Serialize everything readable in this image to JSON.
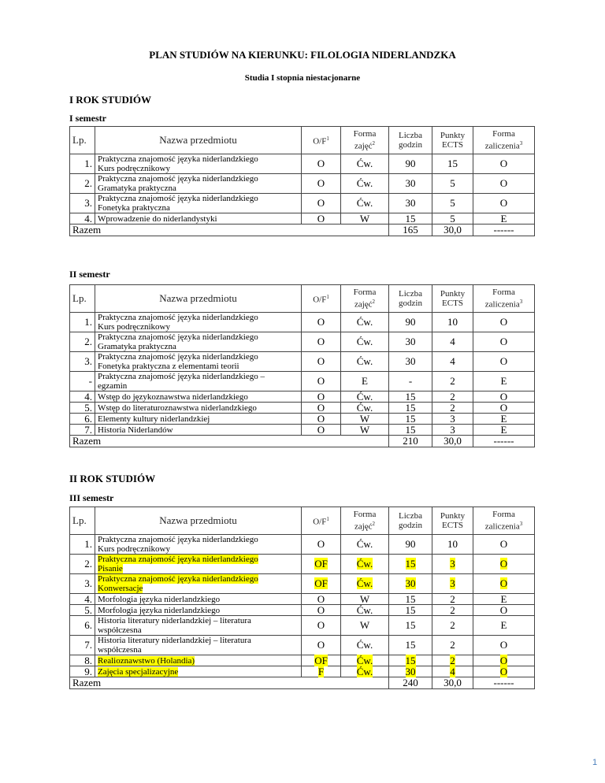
{
  "title": "PLAN STUDIÓW NA KIERUNKU: FILOLOGIA NIDERLANDZKA",
  "subtitle": "Studia I stopnia niestacjonarne",
  "headers": {
    "lp": "Lp.",
    "name": "Nazwa przedmiotu",
    "of": "O/F",
    "of_sup": "1",
    "forma": "Forma zajęć",
    "forma_sup": "2",
    "liczba": "Liczba godzin",
    "punkty": "Punkty ECTS",
    "zal": "Forma zaliczenia",
    "zal_sup": "3"
  },
  "highlight_color": "#ffff00",
  "years": [
    {
      "label": "I ROK STUDIÓW"
    },
    {
      "label": "II ROK STUDIÓW"
    }
  ],
  "semesters": [
    {
      "label": "I semestr",
      "rows": [
        {
          "lp": "1.",
          "name": "Praktyczna znajomość języka niderlandzkiego\nKurs podręcznikowy",
          "of": "O",
          "forma": "Ćw.",
          "godz": "90",
          "ects": "15",
          "zal": "O"
        },
        {
          "lp": "2.",
          "name": "Praktyczna znajomość języka niderlandzkiego\nGramatyka praktyczna",
          "of": "O",
          "forma": "Ćw.",
          "godz": "30",
          "ects": "5",
          "zal": "O"
        },
        {
          "lp": "3.",
          "name": "Praktyczna znajomość języka niderlandzkiego\nFonetyka praktyczna",
          "of": "O",
          "forma": "Ćw.",
          "godz": "30",
          "ects": "5",
          "zal": "O"
        },
        {
          "lp": "4.",
          "name": "Wprowadzenie do niderlandystyki",
          "of": "O",
          "forma": "W",
          "godz": "15",
          "ects": "5",
          "zal": "E"
        }
      ],
      "total": {
        "label": "Razem",
        "godz": "165",
        "ects": "30,0",
        "zal": "------"
      }
    },
    {
      "label": "II semestr",
      "rows": [
        {
          "lp": "1.",
          "name": "Praktyczna znajomość języka niderlandzkiego\nKurs podręcznikowy",
          "of": "O",
          "forma": "Ćw.",
          "godz": "90",
          "ects": "10",
          "zal": "O"
        },
        {
          "lp": "2.",
          "name": "Praktyczna znajomość języka niderlandzkiego\nGramatyka praktyczna",
          "of": "O",
          "forma": "Ćw.",
          "godz": "30",
          "ects": "4",
          "zal": "O"
        },
        {
          "lp": "3.",
          "name": "Praktyczna znajomość języka niderlandzkiego\nFonetyka praktyczna z elementami teorii",
          "of": "O",
          "forma": "Ćw.",
          "godz": "30",
          "ects": "4",
          "zal": "O"
        },
        {
          "lp": "-",
          "name": "Praktyczna znajomość języka niderlandzkiego –\negzamin",
          "of": "O",
          "forma": "E",
          "godz": "-",
          "ects": "2",
          "zal": "E"
        },
        {
          "lp": "4.",
          "name": "Wstęp do językoznawstwa niderlandzkiego",
          "of": "O",
          "forma": "Ćw.",
          "godz": "15",
          "ects": "2",
          "zal": "O"
        },
        {
          "lp": "5.",
          "name": "Wstęp do literaturoznawstwa niderlandzkiego",
          "of": "O",
          "forma": "Ćw.",
          "godz": "15",
          "ects": "2",
          "zal": "O"
        },
        {
          "lp": "6.",
          "name": "Elementy kultury niderlandzkiej",
          "of": "O",
          "forma": "W",
          "godz": "15",
          "ects": "3",
          "zal": "E"
        },
        {
          "lp": "7.",
          "name": "Historia Niderlandów",
          "of": "O",
          "forma": "W",
          "godz": "15",
          "ects": "3",
          "zal": "E"
        }
      ],
      "total": {
        "label": "Razem",
        "godz": "210",
        "ects": "30,0",
        "zal": "------"
      }
    },
    {
      "label": "III semestr",
      "rows": [
        {
          "lp": "1.",
          "name": "Praktyczna znajomość języka niderlandzkiego\nKurs podręcznikowy",
          "of": "O",
          "forma": "Ćw.",
          "godz": "90",
          "ects": "10",
          "zal": "O"
        },
        {
          "lp": "2.",
          "name": "Praktyczna znajomość języka niderlandzkiego\nPisanie",
          "of": "OF",
          "forma": "Ćw.",
          "godz": "15",
          "ects": "3",
          "zal": "O",
          "highlight": true
        },
        {
          "lp": "3.",
          "name": "Praktyczna znajomość języka niderlandzkiego\nKonwersacje",
          "of": "OF",
          "forma": "Ćw.",
          "godz": "30",
          "ects": "3",
          "zal": "O",
          "highlight": true
        },
        {
          "lp": "4.",
          "name": "Morfologia języka niderlandzkiego",
          "of": "O",
          "forma": "W",
          "godz": "15",
          "ects": "2",
          "zal": "E"
        },
        {
          "lp": "5.",
          "name": "Morfologia języka niderlandzkiego",
          "of": "O",
          "forma": "Ćw.",
          "godz": "15",
          "ects": "2",
          "zal": "O"
        },
        {
          "lp": "6.",
          "name": "Historia literatury niderlandzkiej – literatura\nwspółczesna",
          "of": "O",
          "forma": "W",
          "godz": "15",
          "ects": "2",
          "zal": "E"
        },
        {
          "lp": "7.",
          "name": "Historia literatury niderlandzkiej – literatura\nwspółczesna",
          "of": "O",
          "forma": "Ćw.",
          "godz": "15",
          "ects": "2",
          "zal": "O"
        },
        {
          "lp": "8.",
          "name": "Realioznawstwo (Holandia)",
          "of": "OF",
          "forma": "Ćw.",
          "godz": "15",
          "ects": "2",
          "zal": "O",
          "highlight": true
        },
        {
          "lp": "9.",
          "name": "Zajęcia specjalizacyjne",
          "of": "F",
          "forma": "Ćw.",
          "godz": "30",
          "ects": "4",
          "zal": "O",
          "highlight": true
        }
      ],
      "total": {
        "label": "Razem",
        "godz": "240",
        "ects": "30,0",
        "zal": "------"
      }
    }
  ],
  "page_number": "1"
}
